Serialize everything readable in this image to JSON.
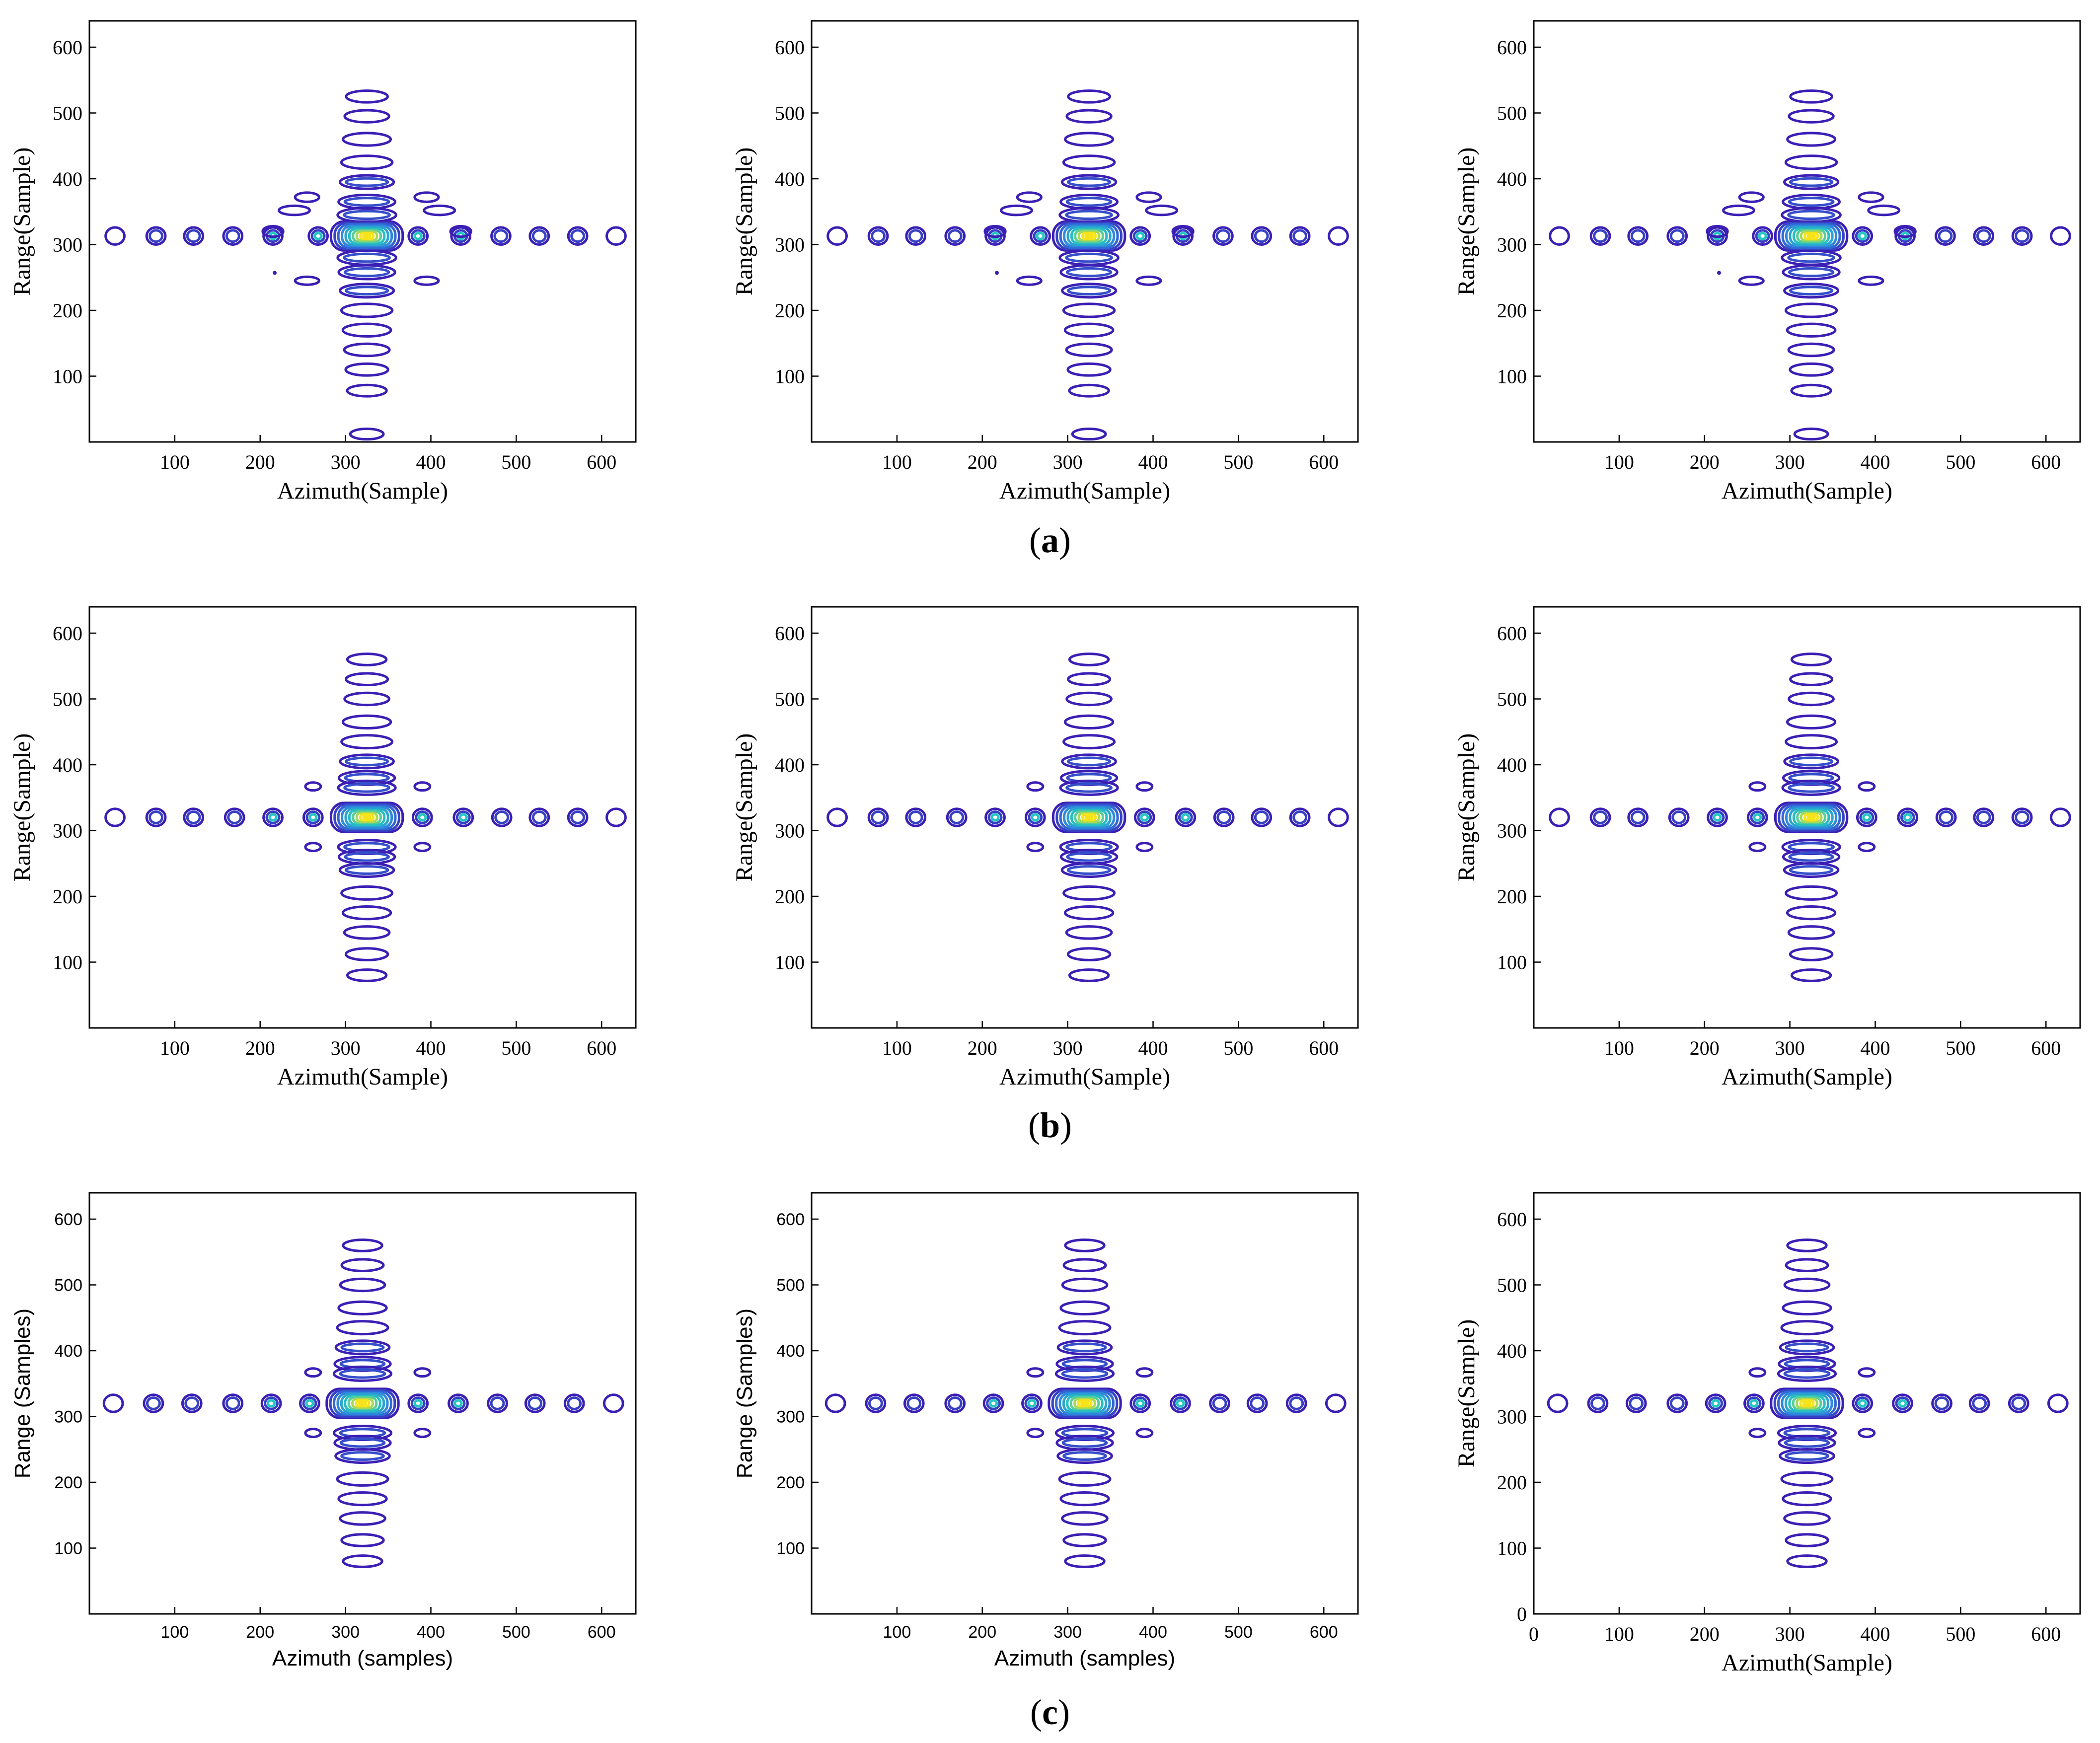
{
  "figure_kind": "contour plots of point target response",
  "panel_captions": [
    {
      "open": "(",
      "letter": "a",
      "close": ")"
    },
    {
      "open": "(",
      "letter": "b",
      "close": ")"
    },
    {
      "open": "(",
      "letter": "c",
      "close": ")"
    }
  ],
  "colors": {
    "contour_low": "#3b1fb5",
    "contour_mid": "#2f7fe0",
    "contour_high": "#24c7c0",
    "contour_peak": "#f6e31a",
    "axis": "#000000",
    "background": "#ffffff"
  },
  "chart_data": [
    {
      "type": "contour",
      "row": "a",
      "col": 1,
      "title": "",
      "xlabel": "Azimuth(Sample)",
      "ylabel": "Range(Sample)",
      "xlim": [
        0,
        640
      ],
      "ylim": [
        0,
        640
      ],
      "xticks": [
        100,
        200,
        300,
        400,
        500,
        600
      ],
      "yticks": [
        100,
        200,
        300,
        400,
        500,
        600
      ],
      "peak": {
        "azimuth": 325,
        "range": 313
      },
      "variant": "a",
      "font": "serif",
      "range_sidelobes": [
        525,
        495,
        460,
        425,
        395,
        365,
        345,
        280,
        258,
        230,
        200,
        170,
        140,
        110,
        78,
        12
      ],
      "azimuth_sidelobes": [
        30,
        78,
        122,
        168,
        215,
        268,
        385,
        435,
        482,
        527,
        572,
        617
      ]
    },
    {
      "type": "contour",
      "row": "a",
      "col": 2,
      "title": "",
      "xlabel": "Azimuth(Sample)",
      "ylabel": "Range(Sample)",
      "xlim": [
        0,
        640
      ],
      "ylim": [
        0,
        640
      ],
      "xticks": [
        100,
        200,
        300,
        400,
        500,
        600
      ],
      "yticks": [
        100,
        200,
        300,
        400,
        500,
        600
      ],
      "peak": {
        "azimuth": 325,
        "range": 313
      },
      "variant": "a",
      "font": "serif",
      "range_sidelobes": [
        525,
        495,
        460,
        425,
        395,
        365,
        345,
        280,
        258,
        230,
        200,
        170,
        140,
        110,
        78,
        12
      ],
      "azimuth_sidelobes": [
        30,
        78,
        122,
        168,
        215,
        268,
        385,
        435,
        482,
        527,
        572,
        617
      ]
    },
    {
      "type": "contour",
      "row": "a",
      "col": 3,
      "title": "",
      "xlabel": "Azimuth(Sample)",
      "ylabel": "Range(Sample)",
      "xlim": [
        0,
        640
      ],
      "ylim": [
        0,
        640
      ],
      "xticks": [
        100,
        200,
        300,
        400,
        500,
        600
      ],
      "yticks": [
        100,
        200,
        300,
        400,
        500,
        600
      ],
      "peak": {
        "azimuth": 325,
        "range": 313
      },
      "variant": "a",
      "font": "serif",
      "range_sidelobes": [
        525,
        495,
        460,
        425,
        395,
        365,
        345,
        280,
        258,
        230,
        200,
        170,
        140,
        110,
        78,
        12
      ],
      "azimuth_sidelobes": [
        30,
        78,
        122,
        168,
        215,
        268,
        385,
        435,
        482,
        527,
        572,
        617
      ]
    },
    {
      "type": "contour",
      "row": "b",
      "col": 1,
      "title": "",
      "xlabel": "Azimuth(Sample)",
      "ylabel": "Range(Sample)",
      "xlim": [
        0,
        640
      ],
      "ylim": [
        0,
        640
      ],
      "xticks": [
        100,
        200,
        300,
        400,
        500,
        600
      ],
      "yticks": [
        100,
        200,
        300,
        400,
        500,
        600
      ],
      "peak": {
        "azimuth": 325,
        "range": 320
      },
      "variant": "b",
      "font": "serif",
      "range_sidelobes": [
        560,
        530,
        500,
        465,
        435,
        405,
        380,
        365,
        275,
        260,
        240,
        205,
        175,
        145,
        112,
        80
      ],
      "azimuth_sidelobes": [
        30,
        78,
        122,
        170,
        215,
        262,
        390,
        438,
        483,
        527,
        572,
        617
      ]
    },
    {
      "type": "contour",
      "row": "b",
      "col": 2,
      "title": "",
      "xlabel": "Azimuth(Sample)",
      "ylabel": "Range(Sample)",
      "xlim": [
        0,
        640
      ],
      "ylim": [
        0,
        640
      ],
      "xticks": [
        100,
        200,
        300,
        400,
        500,
        600
      ],
      "yticks": [
        100,
        200,
        300,
        400,
        500,
        600
      ],
      "peak": {
        "azimuth": 325,
        "range": 320
      },
      "variant": "b",
      "font": "serif",
      "range_sidelobes": [
        560,
        530,
        500,
        465,
        435,
        405,
        380,
        365,
        275,
        260,
        240,
        205,
        175,
        145,
        112,
        80
      ],
      "azimuth_sidelobes": [
        30,
        78,
        122,
        170,
        215,
        262,
        390,
        438,
        483,
        527,
        572,
        617
      ]
    },
    {
      "type": "contour",
      "row": "b",
      "col": 3,
      "title": "",
      "xlabel": "Azimuth(Sample)",
      "ylabel": "Range(Sample)",
      "xlim": [
        0,
        640
      ],
      "ylim": [
        0,
        640
      ],
      "xticks": [
        100,
        200,
        300,
        400,
        500,
        600
      ],
      "yticks": [
        100,
        200,
        300,
        400,
        500,
        600
      ],
      "peak": {
        "azimuth": 325,
        "range": 320
      },
      "variant": "b",
      "font": "serif",
      "range_sidelobes": [
        560,
        530,
        500,
        465,
        435,
        405,
        380,
        365,
        275,
        260,
        240,
        205,
        175,
        145,
        112,
        80
      ],
      "azimuth_sidelobes": [
        30,
        78,
        122,
        170,
        215,
        262,
        390,
        438,
        483,
        527,
        572,
        617
      ]
    },
    {
      "type": "contour",
      "row": "c",
      "col": 1,
      "title": "",
      "xlabel": "Azimuth (samples)",
      "ylabel": "Range (Samples)",
      "xlim": [
        0,
        640
      ],
      "ylim": [
        0,
        640
      ],
      "xticks": [
        100,
        200,
        300,
        400,
        500,
        600
      ],
      "yticks": [
        100,
        200,
        300,
        400,
        500,
        600
      ],
      "peak": {
        "azimuth": 320,
        "range": 320
      },
      "variant": "c",
      "font": "sans",
      "range_sidelobes": [
        560,
        530,
        500,
        465,
        435,
        405,
        380,
        365,
        275,
        260,
        240,
        205,
        175,
        145,
        112,
        80
      ],
      "azimuth_sidelobes": [
        28,
        75,
        120,
        168,
        213,
        258,
        385,
        432,
        478,
        522,
        568,
        614
      ]
    },
    {
      "type": "contour",
      "row": "c",
      "col": 2,
      "title": "",
      "xlabel": "Azimuth (samples)",
      "ylabel": "Range (Samples)",
      "xlim": [
        0,
        640
      ],
      "ylim": [
        0,
        640
      ],
      "xticks": [
        100,
        200,
        300,
        400,
        500,
        600
      ],
      "yticks": [
        100,
        200,
        300,
        400,
        500,
        600
      ],
      "peak": {
        "azimuth": 320,
        "range": 320
      },
      "variant": "c",
      "font": "sans",
      "range_sidelobes": [
        560,
        530,
        500,
        465,
        435,
        405,
        380,
        365,
        275,
        260,
        240,
        205,
        175,
        145,
        112,
        80
      ],
      "azimuth_sidelobes": [
        28,
        75,
        120,
        168,
        213,
        258,
        385,
        432,
        478,
        522,
        568,
        614
      ]
    },
    {
      "type": "contour",
      "row": "c",
      "col": 3,
      "title": "",
      "xlabel": "Azimuth(Sample)",
      "ylabel": "Range(Sample)",
      "xlim": [
        0,
        640
      ],
      "ylim": [
        0,
        640
      ],
      "xticks": [
        0,
        100,
        200,
        300,
        400,
        500,
        600
      ],
      "yticks": [
        0,
        100,
        200,
        300,
        400,
        500,
        600
      ],
      "peak": {
        "azimuth": 320,
        "range": 320
      },
      "variant": "c",
      "font": "serif",
      "range_sidelobes": [
        560,
        530,
        500,
        465,
        435,
        405,
        380,
        365,
        275,
        260,
        240,
        205,
        175,
        145,
        112,
        80
      ],
      "azimuth_sidelobes": [
        28,
        75,
        120,
        168,
        213,
        258,
        385,
        432,
        478,
        522,
        568,
        614
      ]
    }
  ]
}
